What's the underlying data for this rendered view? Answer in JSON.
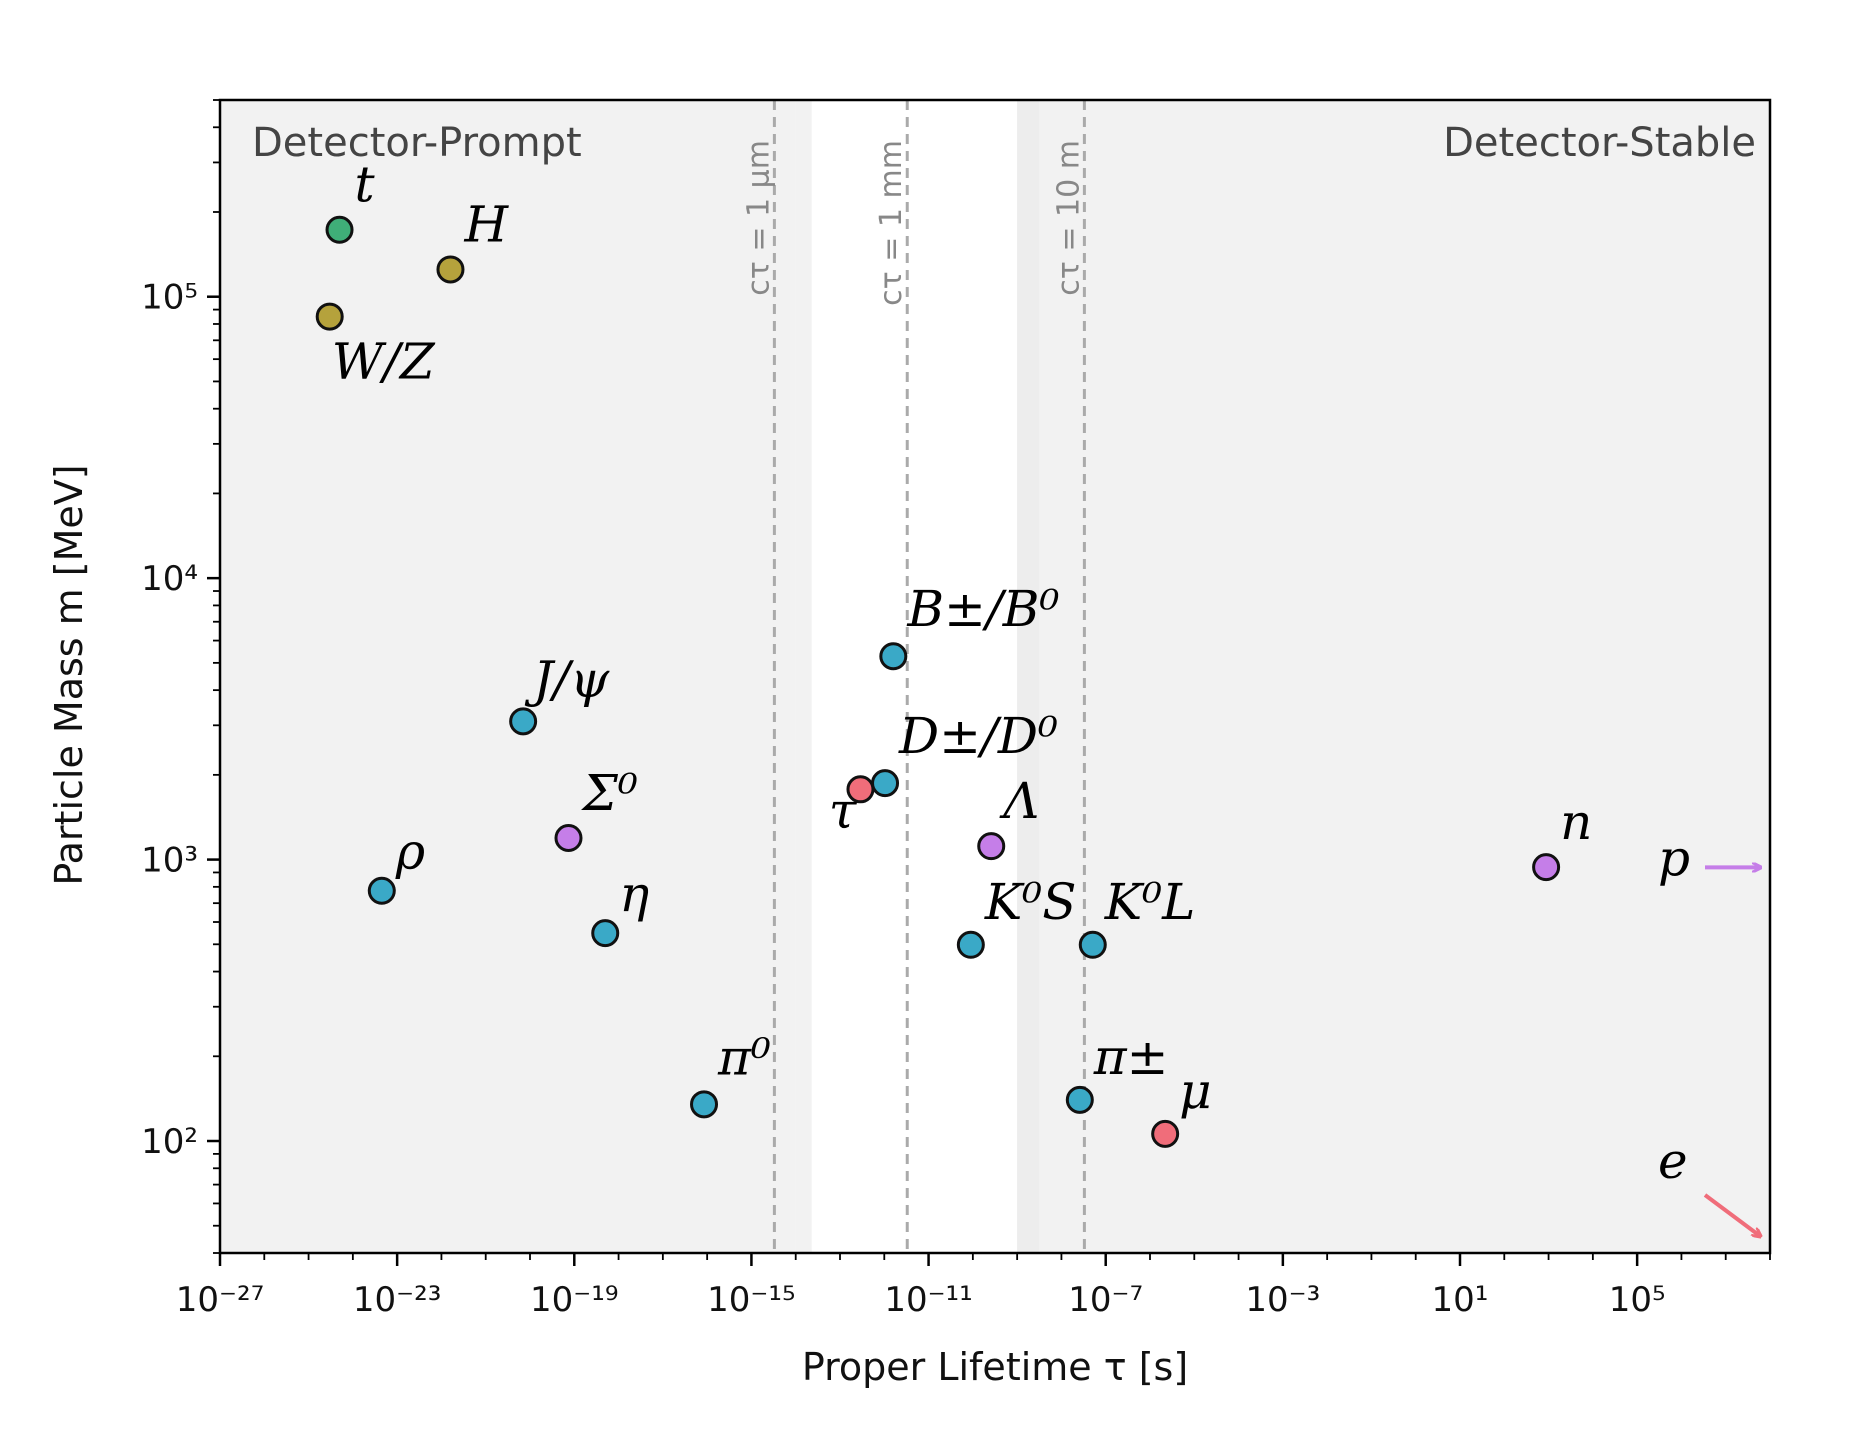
{
  "chart_data": {
    "type": "scatter",
    "title": "",
    "xlabel": "Proper Lifetime τ [s]",
    "ylabel": "Particle Mass m [MeV]",
    "xscale": "log",
    "yscale": "log",
    "xlim": [
      1e-27,
      100000000.0
    ],
    "ylim": [
      40,
      500000
    ],
    "grid": false,
    "x_tick_labels": [
      "10⁻²⁷",
      "10⁻²³",
      "10⁻¹⁹",
      "10⁻¹⁵",
      "10⁻¹¹",
      "10⁻⁷",
      "10⁻³",
      "10¹",
      "10⁵"
    ],
    "y_tick_labels": [
      "10²",
      "10³",
      "10⁴",
      "10⁵"
    ],
    "regions": [
      {
        "label": "Detector-Prompt",
        "x_from": 1e-27,
        "x_to": 1e-14
      },
      {
        "label": "",
        "x_from": 1e-09,
        "x_to": 100000000.0
      },
      {
        "label": "Detector-Stable",
        "x_from": 1e-09,
        "x_to": 100000000.0
      }
    ],
    "vertical_lines": [
      {
        "x": 3.3e-15,
        "label": "cτ = 1 μm"
      },
      {
        "x": 3.3e-12,
        "label": "cτ = 1 mm"
      },
      {
        "x": 3.3e-08,
        "label": "cτ = 10 m"
      }
    ],
    "points": [
      {
        "label": "t",
        "x": 5e-25,
        "y": 173000,
        "color": "#3fae78"
      },
      {
        "label": "H",
        "x": 1.6e-22,
        "y": 125000,
        "color": "#b5a23c"
      },
      {
        "label": "W/Z",
        "x": 3e-25,
        "y": 85000,
        "color": "#b5a23c"
      },
      {
        "label": "J/ψ",
        "x": 7e-21,
        "y": 3097,
        "color": "#3aa9c7"
      },
      {
        "label": "Σ⁰",
        "x": 7.4e-20,
        "y": 1193,
        "color": "#c57ee8"
      },
      {
        "label": "ρ",
        "x": 4.5e-24,
        "y": 775,
        "color": "#3aa9c7"
      },
      {
        "label": "η",
        "x": 5e-19,
        "y": 548,
        "color": "#3aa9c7"
      },
      {
        "label": "π⁰",
        "x": 8.5e-17,
        "y": 135,
        "color": "#3aa9c7"
      },
      {
        "label": "τ",
        "x": 2.9e-13,
        "y": 1777,
        "color": "#f06d7a"
      },
      {
        "label": "D±/D⁰",
        "x": 1.04e-12,
        "y": 1869,
        "color": "#3aa9c7"
      },
      {
        "label": "B±/B⁰",
        "x": 1.6e-12,
        "y": 5279,
        "color": "#3aa9c7"
      },
      {
        "label": "Λ",
        "x": 2.6e-10,
        "y": 1116,
        "color": "#c57ee8"
      },
      {
        "label": "K⁰S",
        "x": 9e-11,
        "y": 498,
        "color": "#3aa9c7"
      },
      {
        "label": "K⁰L",
        "x": 5.1e-08,
        "y": 498,
        "color": "#3aa9c7"
      },
      {
        "label": "π±",
        "x": 2.6e-08,
        "y": 140,
        "color": "#3aa9c7"
      },
      {
        "label": "μ",
        "x": 2.2e-06,
        "y": 106,
        "color": "#f06d7a"
      },
      {
        "label": "n",
        "x": 880,
        "y": 940,
        "color": "#c57ee8"
      }
    ],
    "offscale": [
      {
        "label": "p",
        "y": 938,
        "direction": "right",
        "color": "#c57ee8"
      },
      {
        "label": "e",
        "y": 0.511,
        "direction": "right-down",
        "color": "#f06d7a"
      }
    ]
  }
}
